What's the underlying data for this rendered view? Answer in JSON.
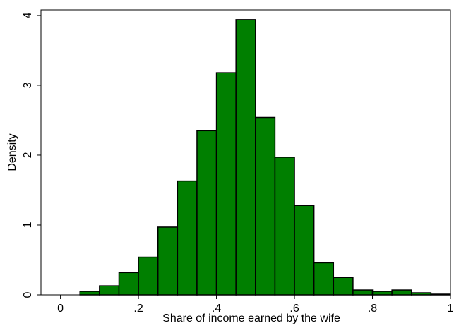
{
  "chart_data": {
    "type": "histogram",
    "x_label": "Share of income earned by the wife",
    "y_label": "Density",
    "bins": [
      0.05,
      0.1,
      0.15,
      0.2,
      0.25,
      0.3,
      0.35,
      0.4,
      0.45,
      0.5,
      0.55,
      0.6,
      0.65,
      0.7,
      0.75,
      0.8,
      0.85,
      0.9,
      0.95,
      1.0
    ],
    "values": [
      0.05,
      0.13,
      0.32,
      0.54,
      0.97,
      1.63,
      2.35,
      3.18,
      3.94,
      2.54,
      1.97,
      1.28,
      0.46,
      0.25,
      0.07,
      0.05,
      0.07,
      0.03,
      0.01
    ],
    "color": "#007f00",
    "xlim": [
      -0.05,
      1.0
    ],
    "ylim": [
      0,
      4.08
    ],
    "xticks": [
      0,
      {
        "value": 0.2,
        "label": ".2"
      },
      {
        "value": 0.4,
        "label": ".4"
      },
      {
        "value": 0.6,
        "label": ".6"
      },
      {
        "value": 0.8,
        "label": ".8"
      },
      1
    ],
    "yticks": [
      0,
      1,
      2,
      3,
      4
    ]
  }
}
